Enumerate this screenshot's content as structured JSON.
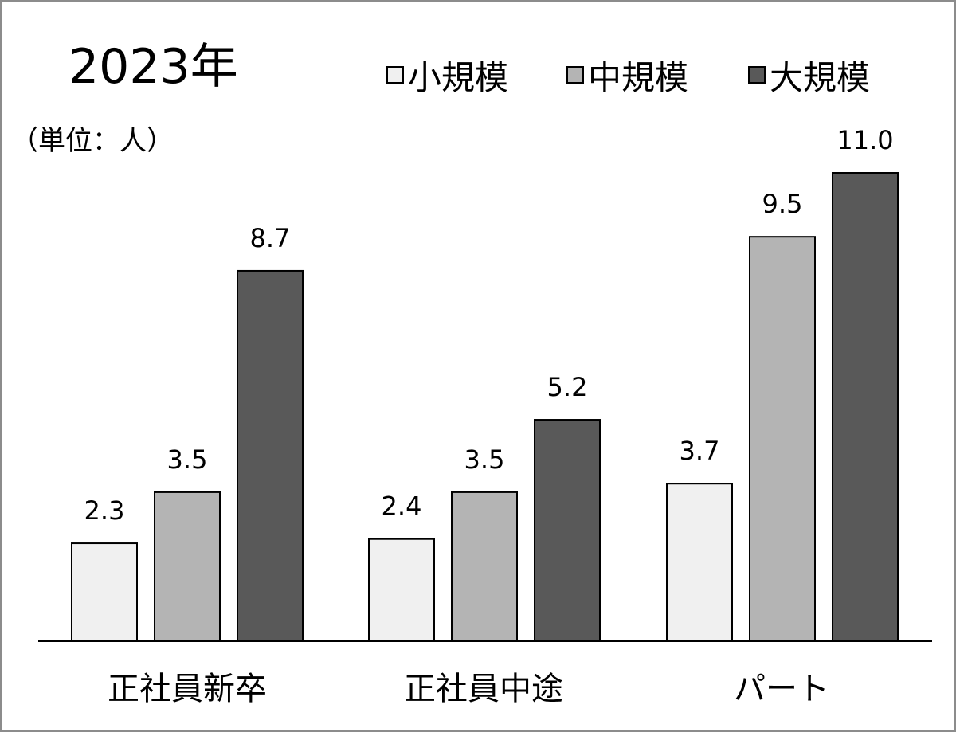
{
  "chart_data": {
    "type": "bar",
    "title": "2023年",
    "unit_label": "（単位：人）",
    "categories": [
      "正社員新卒",
      "正社員中途",
      "パート"
    ],
    "series": [
      {
        "name": "小規模",
        "color": "#f0f0f0",
        "values": [
          2.3,
          2.4,
          3.7
        ],
        "labels": [
          "2.3",
          "2.4",
          "3.7"
        ]
      },
      {
        "name": "中規模",
        "color": "#b4b4b4",
        "values": [
          3.5,
          3.5,
          9.5
        ],
        "labels": [
          "3.5",
          "3.5",
          "9.5"
        ]
      },
      {
        "name": "大規模",
        "color": "#595959",
        "values": [
          8.7,
          5.2,
          11.0
        ],
        "labels": [
          "8.7",
          "5.2",
          "11.0"
        ]
      }
    ],
    "ylim": [
      0,
      11.0
    ],
    "grid": false,
    "legend_position": "top-right"
  }
}
